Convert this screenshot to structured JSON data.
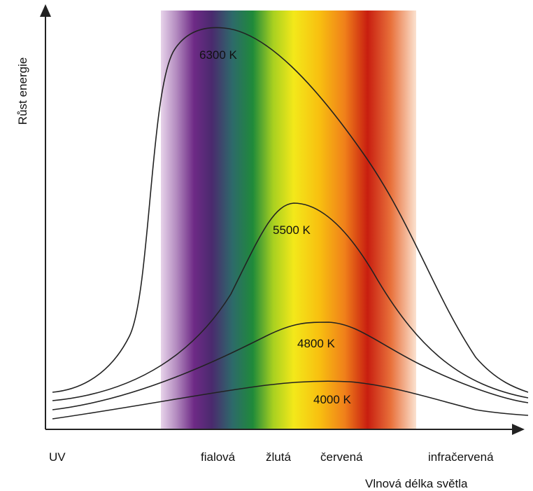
{
  "axes": {
    "y_label": "Růst energie",
    "x_label": "Vlnová délka světla"
  },
  "curves": [
    {
      "label": "6300 K"
    },
    {
      "label": "5500 K"
    },
    {
      "label": "4800 K"
    },
    {
      "label": "4000 K"
    }
  ],
  "regions": [
    "UV",
    "fialová",
    "žlutá",
    "červená",
    "infračervená"
  ]
}
